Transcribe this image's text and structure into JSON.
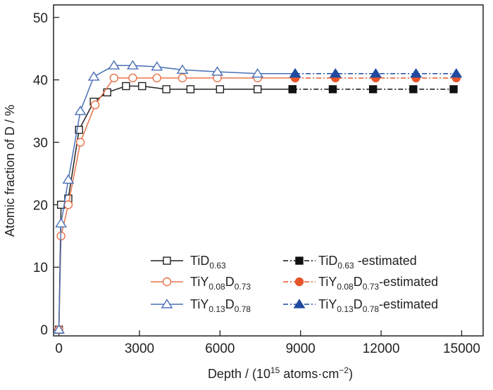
{
  "chart_data": {
    "type": "line",
    "xlabel": "Depth / (10",
    "xlabel_sup": "15",
    "xlabel_tail": " atoms·cm",
    "xlabel_sup2": "−2",
    "xlabel_end": ")",
    "ylabel": "Atomic fraction of D / %",
    "xlim": [
      -200,
      15800
    ],
    "ylim": [
      -1,
      52
    ],
    "xticks": [
      0,
      3000,
      6000,
      9000,
      12000,
      15000
    ],
    "yticks": [
      0,
      10,
      20,
      30,
      40,
      50
    ],
    "grid": false,
    "legend_position": "bottom-right",
    "series": [
      {
        "name": "TiD",
        "sub": "0.63",
        "suffix": "",
        "color": "#222222",
        "marker": "square",
        "filled": false,
        "dash": "",
        "x": [
          0,
          80,
          350,
          750,
          1300,
          1800,
          2500,
          3100,
          4000,
          4900,
          6000,
          7400,
          8700
        ],
        "y": [
          0,
          20,
          21,
          32,
          36.5,
          38,
          39,
          39,
          38.5,
          38.5,
          38.5,
          38.5,
          38.5
        ]
      },
      {
        "name": "TiY",
        "sub": "0.08",
        "mid": "D",
        "sub2": "0.73",
        "suffix": "",
        "color": "#e8734a",
        "marker": "circle",
        "filled": false,
        "dash": "",
        "x": [
          0,
          80,
          350,
          800,
          1350,
          2050,
          2750,
          3650,
          4600,
          5900,
          7400,
          8800
        ],
        "y": [
          0,
          15,
          20,
          30,
          36,
          40.3,
          40.3,
          40.3,
          40.3,
          40.3,
          40.3,
          40.3
        ]
      },
      {
        "name": "TiY",
        "sub": "0.13",
        "mid": "D",
        "sub2": "0.78",
        "suffix": "",
        "color": "#4a6fb5",
        "marker": "triangle",
        "filled": false,
        "dash": "",
        "x": [
          0,
          80,
          350,
          800,
          1300,
          2050,
          2750,
          3650,
          4600,
          5900,
          7400,
          8800
        ],
        "y": [
          0,
          17,
          24,
          35,
          40.5,
          42.3,
          42.3,
          42.1,
          41.6,
          41.3,
          41,
          41
        ]
      },
      {
        "name": "TiD",
        "sub": "0.63",
        "suffix": " -estimated",
        "color": "#111111",
        "marker": "square",
        "filled": true,
        "dash": "7,3,2,3",
        "x": [
          8700,
          10200,
          11700,
          13200,
          14700
        ],
        "y": [
          38.5,
          38.5,
          38.5,
          38.5,
          38.5
        ]
      },
      {
        "name": "TiY",
        "sub": "0.08",
        "mid": "D",
        "sub2": "0.73",
        "suffix": "-estimated",
        "color": "#e8542a",
        "marker": "circle",
        "filled": true,
        "dash": "7,3,2,3",
        "x": [
          8800,
          10300,
          11800,
          13300,
          14800
        ],
        "y": [
          40.3,
          40.3,
          40.3,
          40.3,
          40.3
        ]
      },
      {
        "name": "TiY",
        "sub": "0.13",
        "mid": "D",
        "sub2": "0.78",
        "suffix": "-estimated",
        "color": "#1f4aa0",
        "marker": "triangle",
        "filled": true,
        "dash": "7,3,2,3",
        "x": [
          8800,
          10300,
          11800,
          13300,
          14800
        ],
        "y": [
          41,
          41,
          41,
          41,
          41
        ]
      }
    ]
  }
}
